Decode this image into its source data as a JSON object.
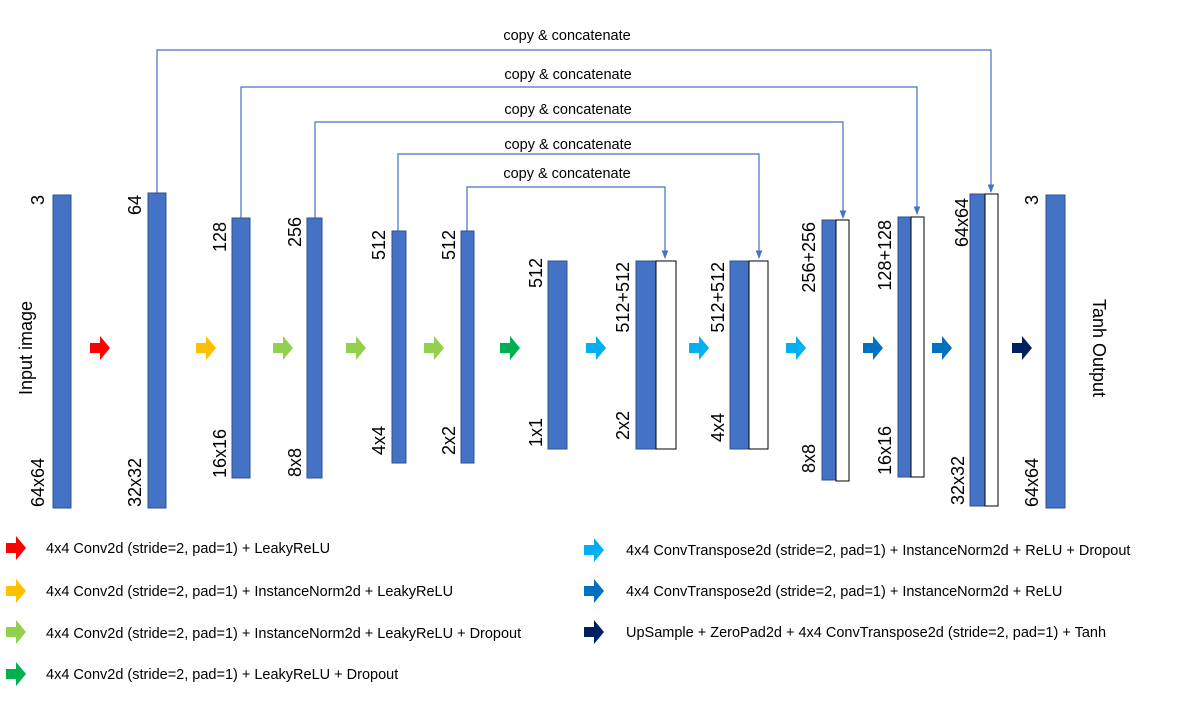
{
  "colors": {
    "bar": "#4472C4",
    "bar_border": "#2F528F",
    "skip_line": "#4472C4",
    "arrow_red": "#FF0000",
    "arrow_yellow": "#FFC000",
    "arrow_lightgreen": "#92D050",
    "arrow_green": "#00B050",
    "arrow_cyan": "#00B0F0",
    "arrow_blue": "#0070C0",
    "arrow_navy": "#002060"
  },
  "blocks": [
    {
      "channels": "3",
      "size": "64x64"
    },
    {
      "channels": "64",
      "size": "32x32"
    },
    {
      "channels": "128",
      "size": "16x16"
    },
    {
      "channels": "256",
      "size": "8x8"
    },
    {
      "channels": "512",
      "size": "4x4"
    },
    {
      "channels": "512",
      "size": "2x2"
    },
    {
      "channels": "512",
      "size": "1x1"
    },
    {
      "channels": "512+512",
      "size": "2x2"
    },
    {
      "channels": "512+512",
      "size": "4x4"
    },
    {
      "channels": "256+256",
      "size": "8x8"
    },
    {
      "channels": "128+128",
      "size": "16x16"
    },
    {
      "channels": "64x64",
      "size": "32x32"
    },
    {
      "channels": "3",
      "size": "64x64"
    }
  ],
  "side_labels": {
    "input": "Input image",
    "output": "Tanh Output"
  },
  "skip_label": "copy & concatenate",
  "legend": [
    {
      "icon": "arrow-red",
      "text": "4x4 Conv2d (stride=2, pad=1) + LeakyReLU"
    },
    {
      "icon": "arrow-yellow",
      "text": "4x4 Conv2d (stride=2, pad=1) + InstanceNorm2d + LeakyReLU"
    },
    {
      "icon": "arrow-lightgreen",
      "text": "4x4 Conv2d (stride=2, pad=1) + InstanceNorm2d + LeakyReLU + Dropout"
    },
    {
      "icon": "arrow-green",
      "text": "4x4 Conv2d (stride=2, pad=1) + LeakyReLU + Dropout"
    },
    {
      "icon": "arrow-cyan",
      "text": "4x4 ConvTranspose2d (stride=2, pad=1) + InstanceNorm2d + ReLU + Dropout"
    },
    {
      "icon": "arrow-blue",
      "text": "4x4 ConvTranspose2d (stride=2, pad=1) + InstanceNorm2d + ReLU"
    },
    {
      "icon": "arrow-navy",
      "text": "UpSample + ZeroPad2d + 4x4 ConvTranspose2d (stride=2, pad=1) + Tanh"
    }
  ]
}
